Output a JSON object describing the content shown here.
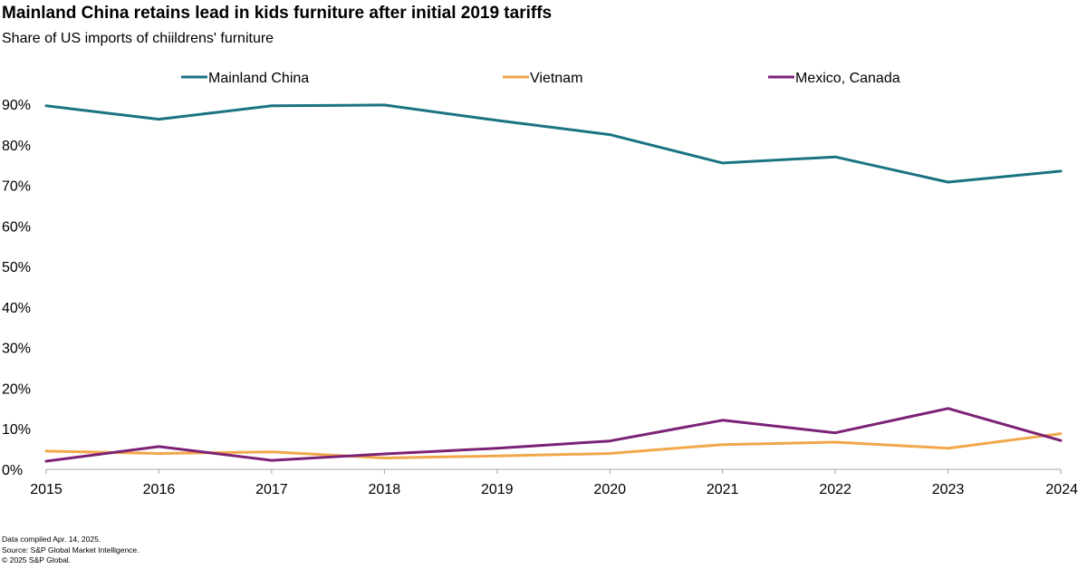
{
  "title": "Mainland China retains lead in kids furniture after initial 2019 tariffs",
  "subtitle": "Share of US imports of chiildrens' furniture",
  "colors": {
    "Mainland China": "#1a7382",
    "Vietnam": "#f2a74a",
    "Mexico, Canada": "#7c2276",
    "axis": "#a6a6a6"
  },
  "chart_data": {
    "type": "line",
    "title": "Mainland China retains lead in kids furniture after initial 2019 tariffs",
    "subtitle": "Share of US imports of chiildrens' furniture",
    "xlabel": "",
    "ylabel": "",
    "x": [
      "2015",
      "2016",
      "2017",
      "2018",
      "2019",
      "2020",
      "2021",
      "2022",
      "2023",
      "2024"
    ],
    "ylim": [
      0,
      90
    ],
    "yticks": [
      0,
      10,
      20,
      30,
      40,
      50,
      60,
      70,
      80,
      90
    ],
    "ytick_labels": [
      "0%",
      "10%",
      "20%",
      "30%",
      "40%",
      "50%",
      "60%",
      "70%",
      "80%",
      "90%"
    ],
    "legend_position": "top",
    "grid": false,
    "series": [
      {
        "name": "Mainland China",
        "values": [
          89.6,
          86.3,
          89.6,
          89.8,
          86.0,
          82.5,
          75.5,
          77.0,
          70.8,
          73.5
        ]
      },
      {
        "name": "Vietnam",
        "values": [
          4.5,
          3.9,
          4.3,
          2.8,
          3.3,
          3.9,
          6.1,
          6.7,
          5.2,
          8.8
        ]
      },
      {
        "name": "Mexico, Canada",
        "values": [
          2.0,
          5.6,
          2.2,
          3.8,
          5.2,
          7.0,
          12.1,
          9.0,
          15.0,
          7.1
        ]
      }
    ]
  },
  "footnotes": [
    "Data compiled Apr. 14, 2025.",
    "Source: S&P Global Market Intelligence.",
    "© 2025 S&P Global."
  ]
}
